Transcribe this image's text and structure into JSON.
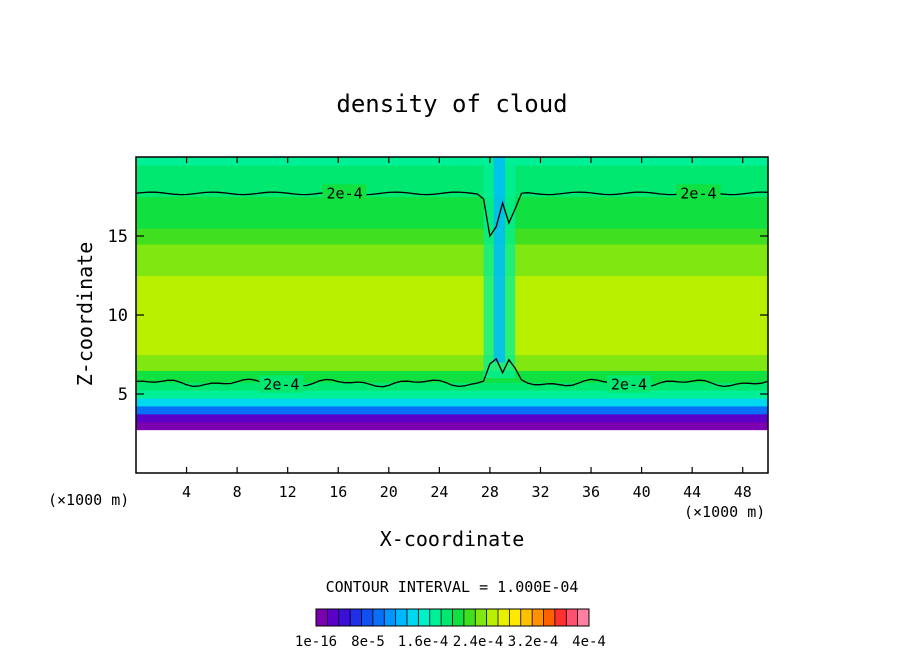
{
  "chart_data": {
    "type": "heatmap",
    "title": "density of cloud",
    "xlabel": "X-coordinate",
    "ylabel": "Z-coordinate",
    "x_unit": "(×1000 m)",
    "x_unit_right": "(×1000 m)",
    "xlim": [
      0,
      50
    ],
    "ylim": [
      0,
      20
    ],
    "x_ticks": [
      4,
      8,
      12,
      16,
      20,
      24,
      28,
      32,
      36,
      40,
      44,
      48
    ],
    "y_ticks": [
      5,
      10,
      15
    ],
    "contour_interval_text": "CONTOUR INTERVAL = 1.000E-04",
    "contour_label": "2e-4",
    "contour_label_positions_x": [
      16.5,
      44.5,
      11.5,
      39
    ],
    "colorbar": {
      "colors": [
        "#7a00b0",
        "#5a00c8",
        "#3a10d8",
        "#2030e8",
        "#1050f0",
        "#0870f8",
        "#0095ff",
        "#00b8ff",
        "#00d8f0",
        "#00f0c8",
        "#00f098",
        "#00e870",
        "#10e040",
        "#40e020",
        "#80e810",
        "#b8f000",
        "#e8f000",
        "#ffe800",
        "#ffc000",
        "#ff9000",
        "#ff6000",
        "#ff3030",
        "#ff5070",
        "#ff80a0"
      ],
      "tick_labels": [
        "1e-16",
        "8e-5",
        "1.6e-4",
        "2.4e-4",
        "3.2e-4",
        "4e-4"
      ]
    },
    "vertical_profile": [
      {
        "z": 2.5,
        "value": 0.0
      },
      {
        "z": 3.0,
        "value": 1e-05
      },
      {
        "z": 3.5,
        "value": 3e-05
      },
      {
        "z": 4.0,
        "value": 9e-05
      },
      {
        "z": 4.5,
        "value": 0.00014
      },
      {
        "z": 5.0,
        "value": 0.00017
      },
      {
        "z": 5.5,
        "value": 0.00019
      },
      {
        "z": 6.0,
        "value": 0.00021
      },
      {
        "z": 7.0,
        "value": 0.000235
      },
      {
        "z": 8.0,
        "value": 0.00025
      },
      {
        "z": 9.0,
        "value": 0.00026
      },
      {
        "z": 10.0,
        "value": 0.000265
      },
      {
        "z": 11.0,
        "value": 0.000262
      },
      {
        "z": 12.0,
        "value": 0.000255
      },
      {
        "z": 13.0,
        "value": 0.000245
      },
      {
        "z": 14.0,
        "value": 0.000235
      },
      {
        "z": 15.0,
        "value": 0.000225
      },
      {
        "z": 16.0,
        "value": 0.000215
      },
      {
        "z": 17.0,
        "value": 0.000205
      },
      {
        "z": 18.0,
        "value": 0.000195
      },
      {
        "z": 19.0,
        "value": 0.000185
      },
      {
        "z": 20.0,
        "value": 0.00018
      }
    ],
    "updraft_column_x": [
      27.5,
      30.0
    ]
  }
}
